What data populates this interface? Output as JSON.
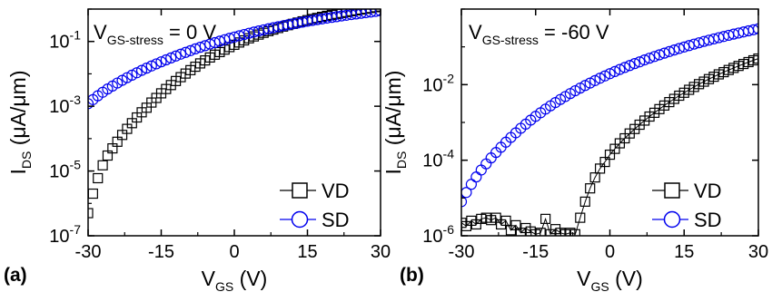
{
  "chart_data": [
    {
      "type": "scatter",
      "panel_label": "(a)",
      "annotation": {
        "main": "V",
        "sub": "GS-stress",
        "rest": " = 0 V"
      },
      "xlabel": {
        "main": "V",
        "sub": "GS",
        "rest": " (V)"
      },
      "ylabel": {
        "main": "I",
        "sub": "DS",
        "rest": " (μA/μm)"
      },
      "xlim": [
        -30,
        30
      ],
      "ylim": [
        1e-07,
        1
      ],
      "yscale": "log",
      "x_ticks": [
        -30,
        -15,
        0,
        15,
        30
      ],
      "x_tick_labels": [
        "-30",
        "-15",
        "0",
        "15",
        "30"
      ],
      "y_ticks": [
        1e-07,
        1e-05,
        0.001,
        0.1
      ],
      "y_tick_labels": [
        {
          "base": "10",
          "exp": "-7"
        },
        {
          "base": "10",
          "exp": "-5"
        },
        {
          "base": "10",
          "exp": "-3"
        },
        {
          "base": "10",
          "exp": "-1"
        }
      ],
      "legend_position": "bottom-right",
      "series": [
        {
          "name": "VD",
          "marker": "square",
          "color": "#000000",
          "x": [
            -30,
            -29,
            -28,
            -27,
            -26,
            -25,
            -24,
            -23,
            -22,
            -21,
            -20,
            -19,
            -18,
            -17,
            -16,
            -15,
            -14,
            -13,
            -12,
            -11,
            -10,
            -9,
            -8,
            -7,
            -6,
            -5,
            -4,
            -3,
            -2,
            -1,
            0,
            1,
            2,
            3,
            4,
            5,
            6,
            7,
            8,
            9,
            10,
            11,
            12,
            13,
            14,
            15,
            16,
            17,
            18,
            19,
            20,
            21,
            22,
            23,
            24,
            25,
            26,
            27,
            28,
            29,
            30
          ],
          "y": [
            5e-07,
            2e-06,
            6e-06,
            1.5e-05,
            3e-05,
            5e-05,
            8e-05,
            0.00013,
            0.0002,
            0.0003,
            0.00045,
            0.00065,
            0.0009,
            0.0013,
            0.0018,
            0.0025,
            0.0034,
            0.0045,
            0.006,
            0.0079,
            0.0102,
            0.013,
            0.0166,
            0.021,
            0.026,
            0.032,
            0.039,
            0.047,
            0.056,
            0.067,
            0.079,
            0.093,
            0.108,
            0.125,
            0.143,
            0.163,
            0.185,
            0.208,
            0.233,
            0.26,
            0.288,
            0.318,
            0.35,
            0.383,
            0.418,
            0.455,
            0.493,
            0.533,
            0.575,
            0.618,
            0.663,
            0.71,
            0.758,
            0.808,
            0.86,
            0.913,
            0.968,
            1.02,
            1.08,
            1.14,
            1.2
          ]
        },
        {
          "name": "SD",
          "marker": "circle",
          "color": "#0000ee",
          "x": [
            -30,
            -29,
            -28,
            -27,
            -26,
            -25,
            -24,
            -23,
            -22,
            -21,
            -20,
            -19,
            -18,
            -17,
            -16,
            -15,
            -14,
            -13,
            -12,
            -11,
            -10,
            -9,
            -8,
            -7,
            -6,
            -5,
            -4,
            -3,
            -2,
            -1,
            0,
            1,
            2,
            3,
            4,
            5,
            6,
            7,
            8,
            9,
            10,
            11,
            12,
            13,
            14,
            15,
            16,
            17,
            18,
            19,
            20,
            21,
            22,
            23,
            24,
            25,
            26,
            27,
            28,
            29,
            30
          ],
          "y": [
            0.0012,
            0.0016,
            0.0021,
            0.0027,
            0.0034,
            0.0042,
            0.0052,
            0.0063,
            0.0076,
            0.0091,
            0.0108,
            0.0128,
            0.015,
            0.0175,
            0.0203,
            0.0235,
            0.027,
            0.031,
            0.0355,
            0.0405,
            0.046,
            0.052,
            0.059,
            0.066,
            0.074,
            0.083,
            0.092,
            0.102,
            0.113,
            0.125,
            0.137,
            0.15,
            0.164,
            0.179,
            0.195,
            0.211,
            0.228,
            0.246,
            0.265,
            0.285,
            0.305,
            0.326,
            0.348,
            0.371,
            0.395,
            0.42,
            0.445,
            0.47,
            0.497,
            0.525,
            0.553,
            0.582,
            0.612,
            0.643,
            0.675,
            0.707,
            0.74,
            0.774,
            0.81,
            0.845,
            0.88
          ]
        }
      ]
    },
    {
      "type": "scatter",
      "panel_label": "(b)",
      "annotation": {
        "main": "V",
        "sub": "GS-stress",
        "rest": " = -60 V"
      },
      "xlabel": {
        "main": "V",
        "sub": "GS",
        "rest": " (V)"
      },
      "ylabel": {
        "main": "I",
        "sub": "DS",
        "rest": " (μA/μm)"
      },
      "xlim": [
        -30,
        30
      ],
      "ylim": [
        1e-06,
        1
      ],
      "yscale": "log",
      "x_ticks": [
        -30,
        -15,
        0,
        15,
        30
      ],
      "x_tick_labels": [
        "-30",
        "-15",
        "0",
        "15",
        "30"
      ],
      "y_ticks": [
        1e-06,
        0.0001,
        0.01
      ],
      "y_tick_labels": [
        {
          "base": "10",
          "exp": "-6"
        },
        {
          "base": "10",
          "exp": "-4"
        },
        {
          "base": "10",
          "exp": "-2"
        }
      ],
      "legend_position": "bottom-right",
      "series": [
        {
          "name": "VD",
          "marker": "square",
          "color": "#000000",
          "x": [
            -30,
            -29,
            -28,
            -27,
            -26,
            -25,
            -24,
            -23,
            -22,
            -21,
            -20,
            -19,
            -18,
            -17,
            -16,
            -15,
            -14,
            -13,
            -12,
            -11,
            -10,
            -9,
            -8,
            -7,
            -6,
            -5,
            -4,
            -3,
            -2,
            -1,
            0,
            1,
            2,
            3,
            4,
            5,
            6,
            7,
            8,
            9,
            10,
            11,
            12,
            13,
            14,
            15,
            16,
            17,
            18,
            19,
            20,
            21,
            22,
            23,
            24,
            25,
            26,
            27,
            28,
            29,
            30
          ],
          "y": [
            2.2e-06,
            1.8e-06,
            2.5e-06,
            2e-06,
            2.8e-06,
            3e-06,
            2.6e-06,
            3e-06,
            2e-06,
            2.5e-06,
            1.4e-06,
            1.9e-06,
            1.2e-06,
            1.6e-06,
            1.3e-06,
            1.1e-06,
            1.2e-06,
            2.8e-06,
            1.1e-06,
            1.5e-06,
            1.2e-06,
            1.1e-06,
            1.2e-06,
            1.1e-06,
            3e-06,
            8e-06,
            1.8e-05,
            3.5e-05,
            6e-05,
            9e-05,
            0.00014,
            0.0002,
            0.00028,
            0.00038,
            0.00051,
            0.00067,
            0.00087,
            0.00112,
            0.00143,
            0.0018,
            0.00225,
            0.0028,
            0.00345,
            0.0042,
            0.0051,
            0.0061,
            0.0073,
            0.0087,
            0.0103,
            0.012,
            0.014,
            0.0162,
            0.0187,
            0.0214,
            0.0244,
            0.0277,
            0.0313,
            0.0352,
            0.0395,
            0.044,
            0.049
          ]
        },
        {
          "name": "SD",
          "marker": "circle",
          "color": "#0000ee",
          "x": [
            -30,
            -29,
            -28,
            -27,
            -26,
            -25,
            -24,
            -23,
            -22,
            -21,
            -20,
            -19,
            -18,
            -17,
            -16,
            -15,
            -14,
            -13,
            -12,
            -11,
            -10,
            -9,
            -8,
            -7,
            -6,
            -5,
            -4,
            -3,
            -2,
            -1,
            0,
            1,
            2,
            3,
            4,
            5,
            6,
            7,
            8,
            9,
            10,
            11,
            12,
            13,
            14,
            15,
            16,
            17,
            18,
            19,
            20,
            21,
            22,
            23,
            24,
            25,
            26,
            27,
            28,
            29,
            30
          ],
          "y": [
            8e-06,
            1.4e-05,
            2.3e-05,
            3.6e-05,
            5.5e-05,
            8e-05,
            0.000115,
            0.00016,
            0.00022,
            0.0003,
            0.0004,
            0.00053,
            0.0007,
            0.0009,
            0.00115,
            0.00145,
            0.0018,
            0.00225,
            0.00275,
            0.00335,
            0.00405,
            0.00485,
            0.0058,
            0.0069,
            0.0081,
            0.0095,
            0.011,
            0.0128,
            0.0148,
            0.017,
            0.0195,
            0.0222,
            0.0252,
            0.0285,
            0.032,
            0.036,
            0.04,
            0.045,
            0.05,
            0.0555,
            0.0615,
            0.068,
            0.075,
            0.0825,
            0.0905,
            0.099,
            0.108,
            0.118,
            0.128,
            0.139,
            0.15,
            0.162,
            0.175,
            0.188,
            0.202,
            0.217,
            0.232,
            0.248,
            0.265,
            0.283,
            0.3
          ]
        }
      ]
    }
  ]
}
